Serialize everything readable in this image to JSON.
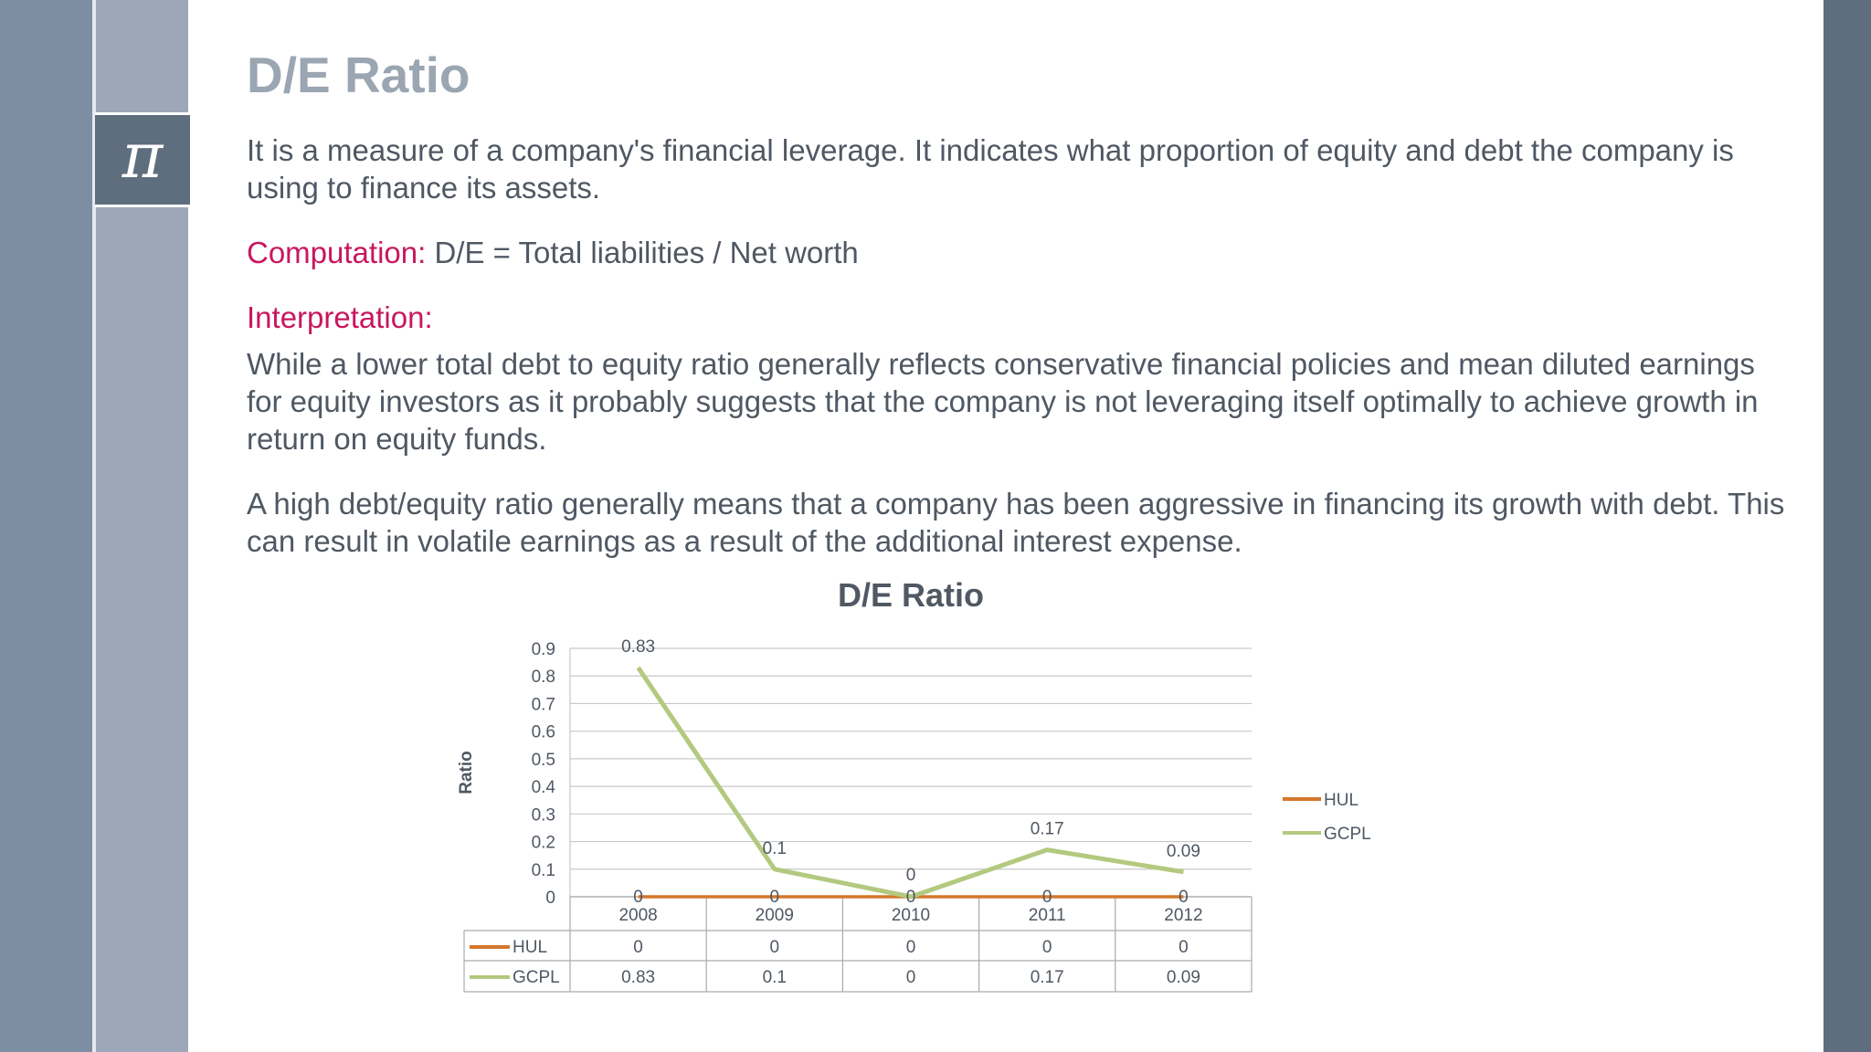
{
  "slide": {
    "title": "D/E Ratio",
    "pi_symbol": "π",
    "intro": "It is a measure of a company's financial leverage. It indicates what proportion of equity and debt the company is using to finance its assets.",
    "computation_label": "Computation:",
    "computation_text": "D/E = Total liabilities / Net worth",
    "interpretation_label": "Interpretation:",
    "interpretation_p1": "While a lower total debt to equity ratio generally reflects conservative financial policies and mean diluted earnings for equity investors as it probably suggests that the company is not leveraging itself optimally to achieve growth in return on equity funds.",
    "interpretation_p2": "A high debt/equity ratio generally means that a company has been aggressive in financing its growth with debt. This can result in volatile earnings as a result of the additional interest expense."
  },
  "colors": {
    "HUL": "#d4772b",
    "GCPL": "#b3c97f",
    "accent": "#c8175f",
    "title": "#9aa6b2"
  },
  "chart_data": {
    "type": "line",
    "title": "D/E Ratio",
    "ylabel": "Ratio",
    "xlabel": "",
    "categories": [
      "2008",
      "2009",
      "2010",
      "2011",
      "2012"
    ],
    "series": [
      {
        "name": "HUL",
        "values": [
          0,
          0,
          0,
          0,
          0
        ]
      },
      {
        "name": "GCPL",
        "values": [
          0.83,
          0.1,
          0,
          0.17,
          0.09
        ]
      }
    ],
    "ylim": [
      0,
      0.9
    ],
    "yticks": [
      "0",
      "0.1",
      "0.2",
      "0.3",
      "0.4",
      "0.5",
      "0.6",
      "0.7",
      "0.8",
      "0.9"
    ],
    "data_labels": {
      "HUL": [
        "0",
        "0",
        "0",
        "0",
        "0"
      ],
      "GCPL": [
        "0.83",
        "0.1",
        "0",
        "0.17",
        "0.09"
      ]
    },
    "grid": true,
    "legend": "right",
    "data_table": true
  }
}
